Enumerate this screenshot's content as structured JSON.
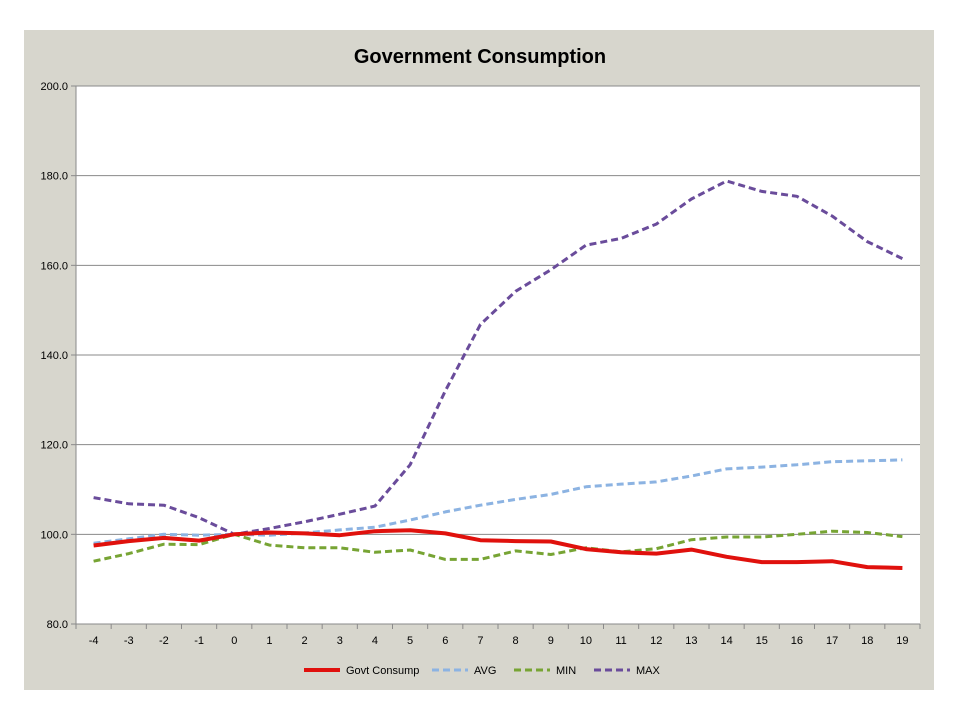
{
  "chart_data": {
    "type": "line",
    "title": "Government Consumption",
    "xlabel": "",
    "ylabel": "",
    "x": [
      -4,
      -3,
      -2,
      -1,
      0,
      1,
      2,
      3,
      4,
      5,
      6,
      7,
      8,
      9,
      10,
      11,
      12,
      13,
      14,
      15,
      16,
      17,
      18,
      19
    ],
    "ylim": [
      80,
      200
    ],
    "yticks": [
      "80.0",
      "100.0",
      "120.0",
      "140.0",
      "160.0",
      "180.0",
      "200.0"
    ],
    "grid": "horizontal",
    "legend_position": "bottom",
    "series": [
      {
        "name": "Govt Consump",
        "color": "#e0110d",
        "style": "solid",
        "values": [
          97.5,
          98.5,
          99.2,
          98.6,
          100.0,
          100.4,
          100.2,
          99.8,
          100.7,
          100.9,
          100.2,
          98.7,
          98.5,
          98.4,
          96.7,
          96.0,
          95.7,
          96.6,
          95.0,
          93.8,
          93.8,
          94.0,
          92.7,
          92.5
        ]
      },
      {
        "name": "AVG",
        "color": "#8cb3e2",
        "style": "dashed",
        "values": [
          98.0,
          99.0,
          100.0,
          99.8,
          100.0,
          99.8,
          100.3,
          101.0,
          101.6,
          103.2,
          105.0,
          106.5,
          107.8,
          108.9,
          110.6,
          111.2,
          111.7,
          113.0,
          114.6,
          115.0,
          115.5,
          116.2,
          116.4,
          116.6
        ]
      },
      {
        "name": "MIN",
        "color": "#77a434",
        "style": "dashed",
        "values": [
          94.0,
          95.7,
          97.8,
          97.7,
          100.0,
          97.6,
          97.0,
          97.0,
          96.0,
          96.5,
          94.4,
          94.4,
          96.3,
          95.5,
          97.0,
          96.1,
          96.8,
          98.8,
          99.4,
          99.4,
          100.0,
          100.7,
          100.4,
          99.5
        ]
      },
      {
        "name": "MAX",
        "color": "#6a4c9b",
        "style": "dashed",
        "values": [
          108.2,
          106.8,
          106.5,
          103.7,
          100.0,
          101.3,
          102.8,
          104.5,
          106.3,
          115.5,
          132.0,
          146.8,
          154.2,
          159.0,
          164.5,
          166.0,
          169.2,
          174.8,
          178.8,
          176.5,
          175.4,
          171.0,
          165.3,
          161.5
        ]
      }
    ]
  }
}
